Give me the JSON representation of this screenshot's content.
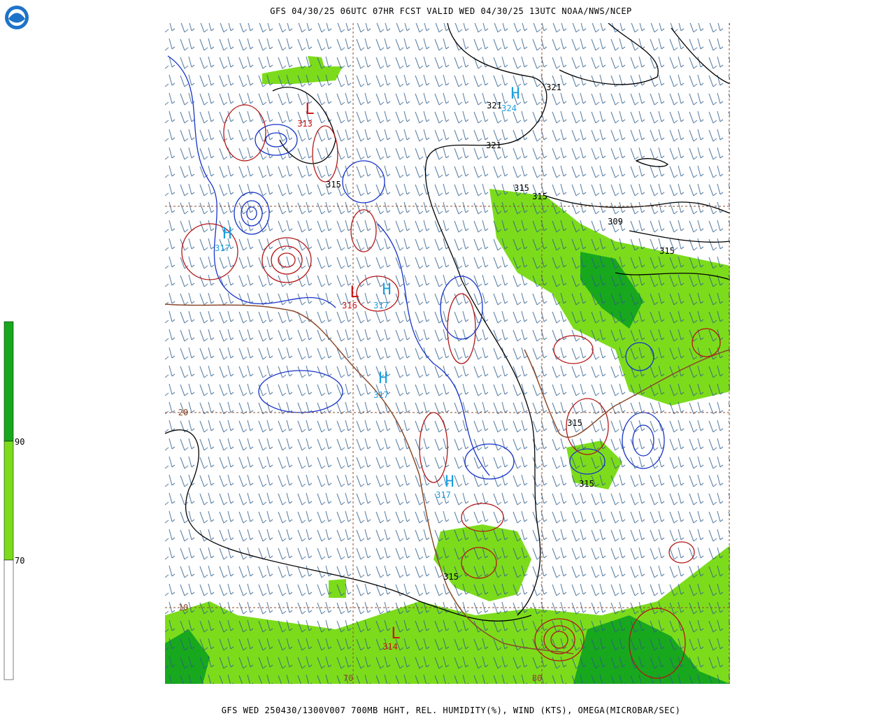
{
  "header": {
    "title": "GFS 04/30/25 06UTC 07HR FCST VALID WED 04/30/25 13UTC NOAA/NWS/NCEP"
  },
  "footer": {
    "caption": "GFS WED 250430/1300V007 700MB HGHT, REL. HUMIDITY(%), WIND (KTS), OMEGA(MICROBAR/SEC)"
  },
  "colorbar": {
    "labels": [
      "90",
      "70"
    ]
  },
  "height_labels": [
    "321",
    "321",
    "321",
    "315",
    "315",
    "315",
    "309",
    "315",
    "315",
    "315",
    "315"
  ],
  "centers": [
    {
      "letter": "H",
      "value": "324"
    },
    {
      "letter": "L",
      "value": "313"
    },
    {
      "letter": "H",
      "value": "317"
    },
    {
      "letter": "L",
      "value": "316"
    },
    {
      "letter": "H",
      "value": "317"
    },
    {
      "letter": "H",
      "value": "317"
    },
    {
      "letter": "H",
      "value": "317"
    },
    {
      "letter": "L",
      "value": "314"
    }
  ],
  "graticule": {
    "latitudes": [
      "20",
      "10"
    ],
    "longitudes": [
      "70",
      "80"
    ]
  }
}
